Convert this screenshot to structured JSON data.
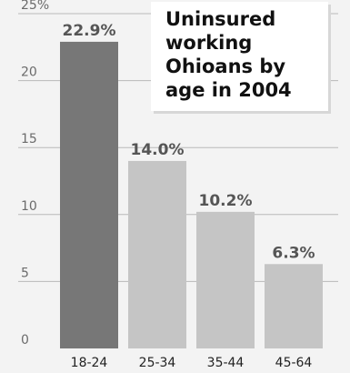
{
  "chart_data": {
    "type": "bar",
    "title_lines": [
      "Uninsured",
      "working",
      "Ohioans by",
      "age in 2004"
    ],
    "categories": [
      "18-24",
      "25-34",
      "35-44",
      "45-64"
    ],
    "values": [
      22.9,
      14.0,
      10.2,
      6.3
    ],
    "value_labels": [
      "22.9%",
      "14.0%",
      "10.2%",
      "6.3%"
    ],
    "y_ticks": [
      "0",
      "5",
      "10",
      "15",
      "20",
      "25%"
    ],
    "y_tick_values": [
      0,
      5,
      10,
      15,
      20,
      25
    ],
    "ylim": [
      0,
      25
    ],
    "grid": true,
    "colors": {
      "background": "#f3f3f3",
      "bar_first": "#777777",
      "bar_rest": "#c5c5c5",
      "grid": "#b9b9b9",
      "axis_text": "#6b6b6b",
      "label_text": "#555555"
    }
  }
}
